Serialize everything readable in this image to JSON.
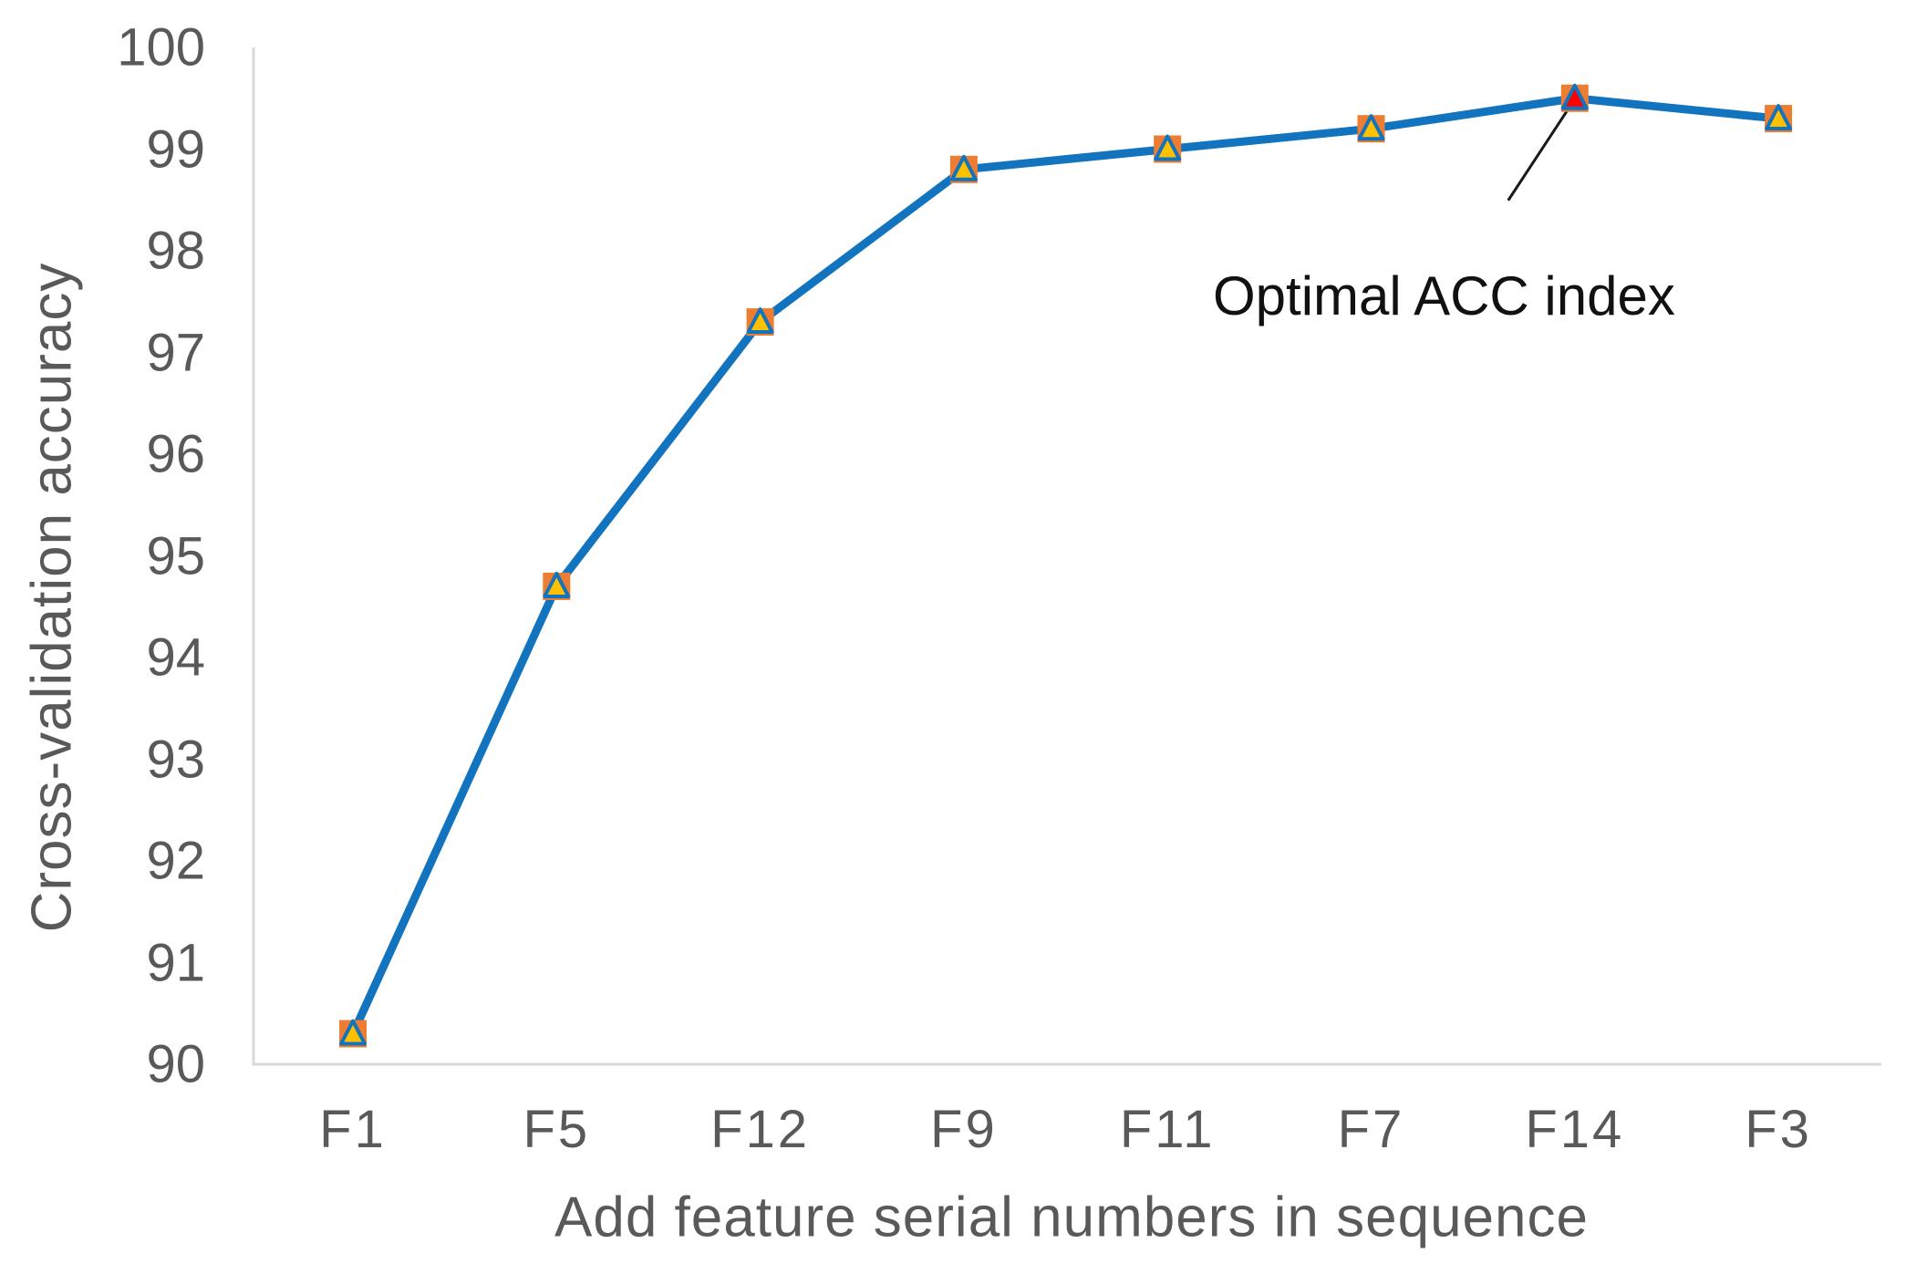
{
  "chart_data": {
    "type": "line",
    "title": "",
    "xlabel": "Add feature serial numbers in sequence",
    "ylabel": "Cross-validation accuracy",
    "categories": [
      "F1",
      "F5",
      "F12",
      "F9",
      "F11",
      "F7",
      "F14",
      "F3"
    ],
    "series": [
      {
        "name": "Cross-validation accuracy",
        "values": [
          90.3,
          94.7,
          97.3,
          98.8,
          99.0,
          99.2,
          99.5,
          99.3
        ]
      }
    ],
    "ylim": [
      90,
      100
    ],
    "yticks": [
      90,
      91,
      92,
      93,
      94,
      95,
      96,
      97,
      98,
      99,
      100
    ],
    "grid": false,
    "legend": "none",
    "annotation": {
      "text": "Optimal ACC index",
      "target_category": "F14",
      "target_value": 99.5
    },
    "colors": {
      "line": "#1274BE",
      "marker_square": "#ED7D31",
      "marker_triangle_fill": "#FFC000",
      "marker_triangle_stroke": "#1274BE",
      "optimal_triangle_fill": "#FF0000",
      "axis_line": "#D9D9D9",
      "tick_label": "#595959",
      "annotation_text": "#111111",
      "annotation_line": "#1a1a1a"
    }
  }
}
